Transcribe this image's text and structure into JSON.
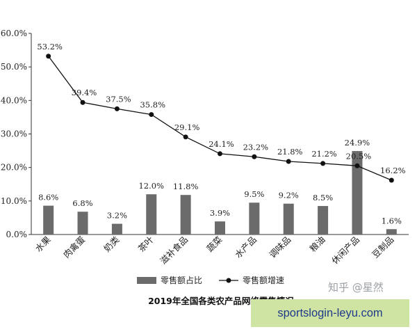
{
  "chart_data": {
    "type": "bar",
    "title": "2019年全国各类农产品网络零售情况",
    "categories": [
      "水果",
      "肉禽蛋",
      "奶类",
      "茶叶",
      "滋补食品",
      "蔬菜",
      "水产品",
      "调味品",
      "粮油",
      "休闲产品",
      "豆制品"
    ],
    "y_ticks": [
      "0.0%",
      "10.0%",
      "20.0%",
      "30.0%",
      "40.0%",
      "50.0%",
      "60.0%"
    ],
    "ylim": [
      0,
      60
    ],
    "grid": false,
    "legend_position": "bottom",
    "series": [
      {
        "name": "零售额占比",
        "type": "bar",
        "color": "#6b6b6b",
        "values": [
          8.6,
          6.8,
          3.2,
          12.0,
          11.8,
          3.9,
          9.5,
          9.2,
          8.5,
          24.9,
          1.6
        ],
        "labels": [
          "8.6%",
          "6.8%",
          "3.2%",
          "12.0%",
          "11.8%",
          "3.9%",
          "9.5%",
          "9.2%",
          "8.5%",
          "24.9%",
          "1.6%"
        ]
      },
      {
        "name": "零售额增速",
        "type": "line",
        "color": "#111111",
        "values": [
          53.2,
          39.4,
          37.5,
          35.8,
          29.1,
          24.1,
          23.2,
          21.8,
          21.2,
          20.5,
          16.2
        ],
        "labels": [
          "53.2%",
          "39.4%",
          "37.5%",
          "35.8%",
          "29.1%",
          "24.1%",
          "23.2%",
          "21.8%",
          "21.2%",
          "20.5%",
          "16.2%"
        ]
      }
    ]
  },
  "watermark": "知乎 @星然",
  "banner": {
    "text": "sportslogin-leyu.com",
    "color": "#cfe3a2"
  }
}
